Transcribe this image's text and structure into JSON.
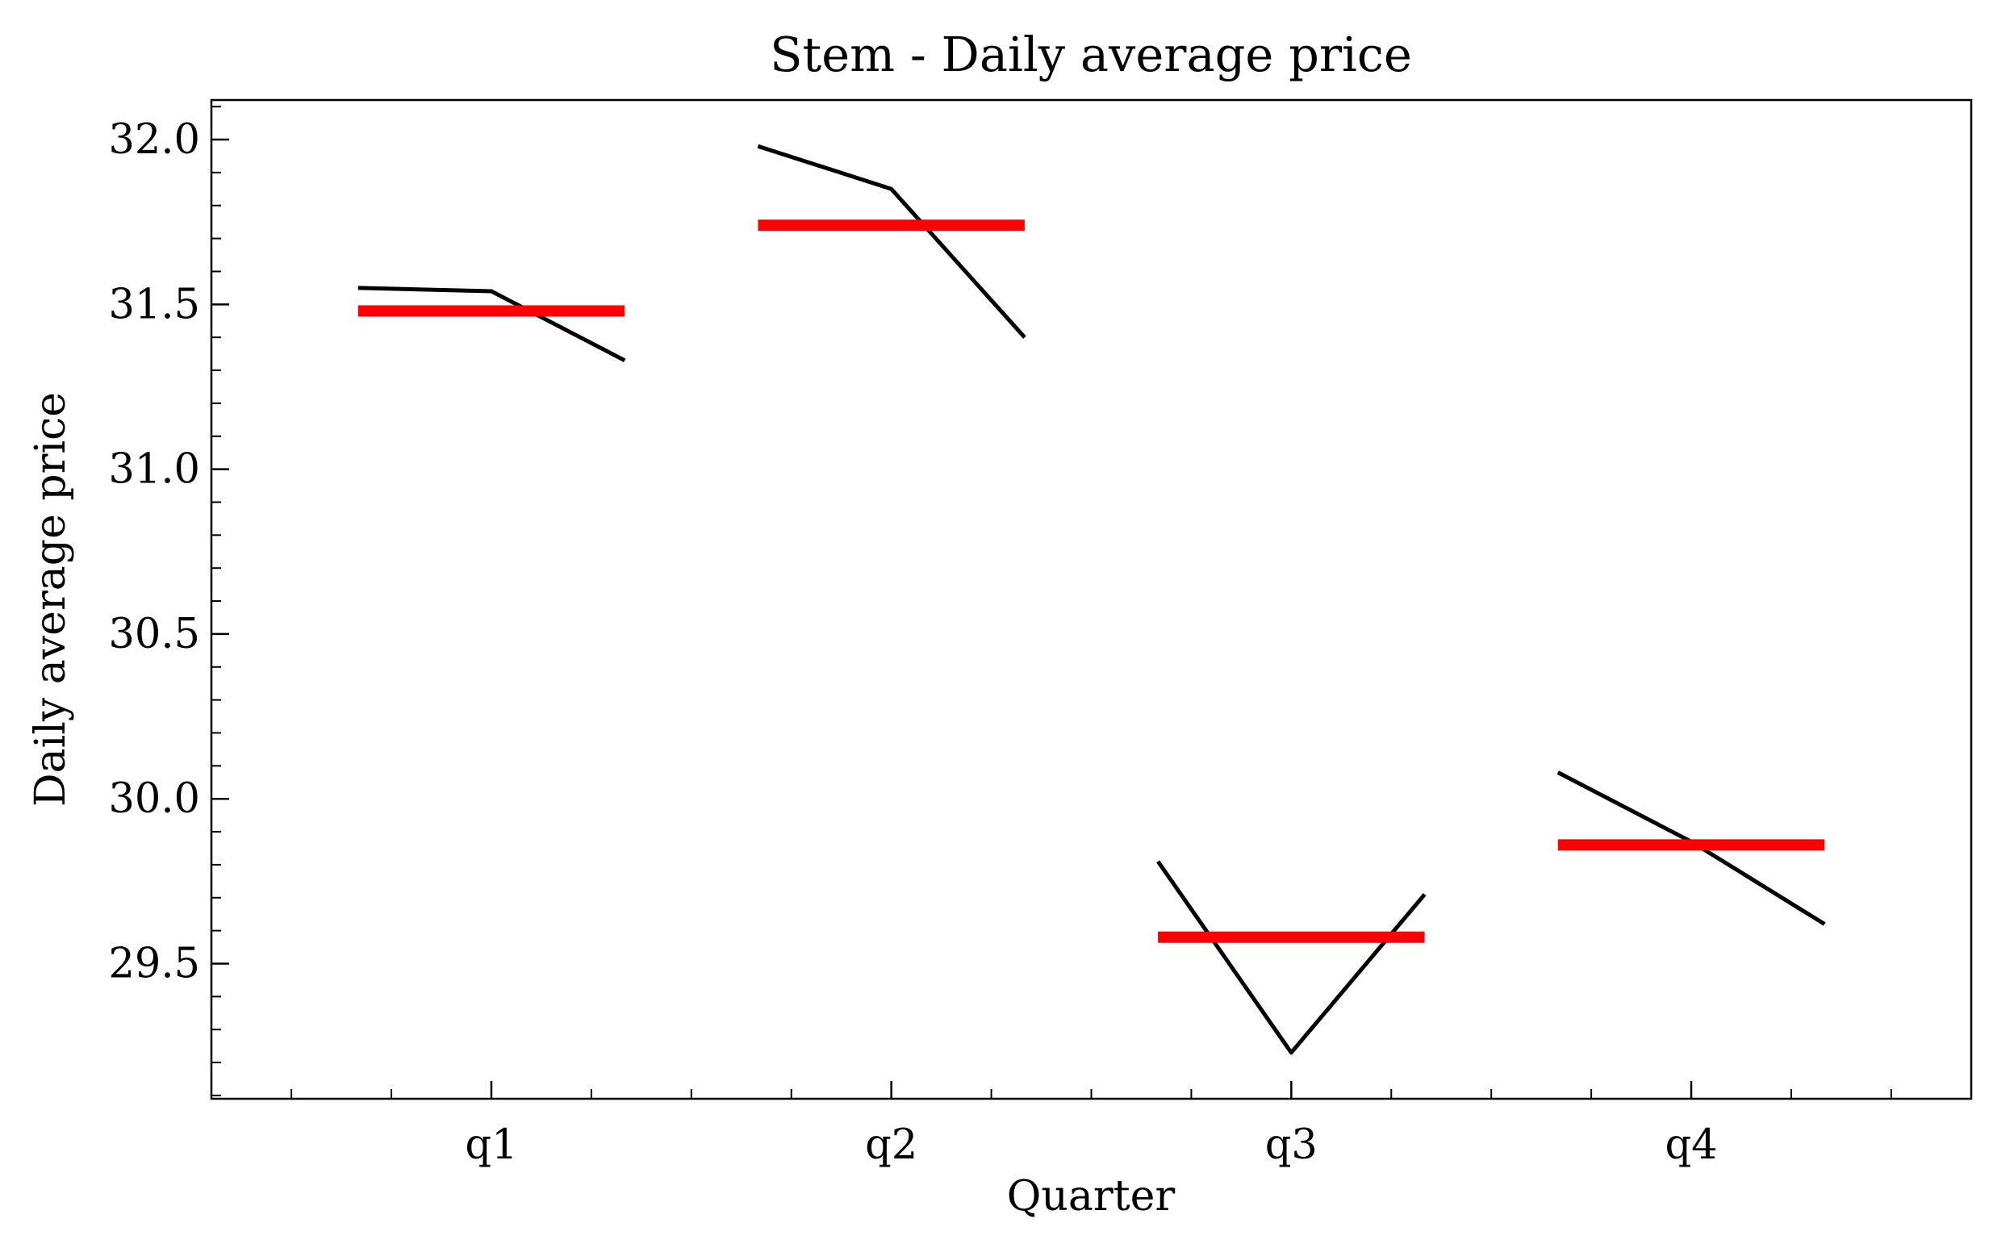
{
  "chart_data": {
    "type": "line",
    "title": "Stem - Daily average price",
    "xlabel": "Quarter",
    "ylabel": "Daily average price",
    "categories": [
      "q1",
      "q2",
      "q3",
      "q4"
    ],
    "ylim": [
      29.09,
      32.12
    ],
    "yticks": [
      29.5,
      30.0,
      30.5,
      31.0,
      31.5,
      32.0
    ],
    "ytick_labels": [
      "29.5",
      "30.0",
      "30.5",
      "31.0",
      "31.5",
      "32.0"
    ],
    "grid": false,
    "series": [
      {
        "kind": "daily",
        "values": [
          [
            31.55,
            31.54,
            31.33
          ],
          [
            31.98,
            31.85,
            31.4
          ],
          [
            29.81,
            29.23,
            29.71
          ],
          [
            30.08,
            29.87,
            29.62
          ]
        ]
      },
      {
        "kind": "mean",
        "values": [
          31.48,
          31.74,
          29.58,
          29.86
        ]
      }
    ],
    "colors": {
      "daily": "#000000",
      "mean": "#ff0000"
    }
  }
}
